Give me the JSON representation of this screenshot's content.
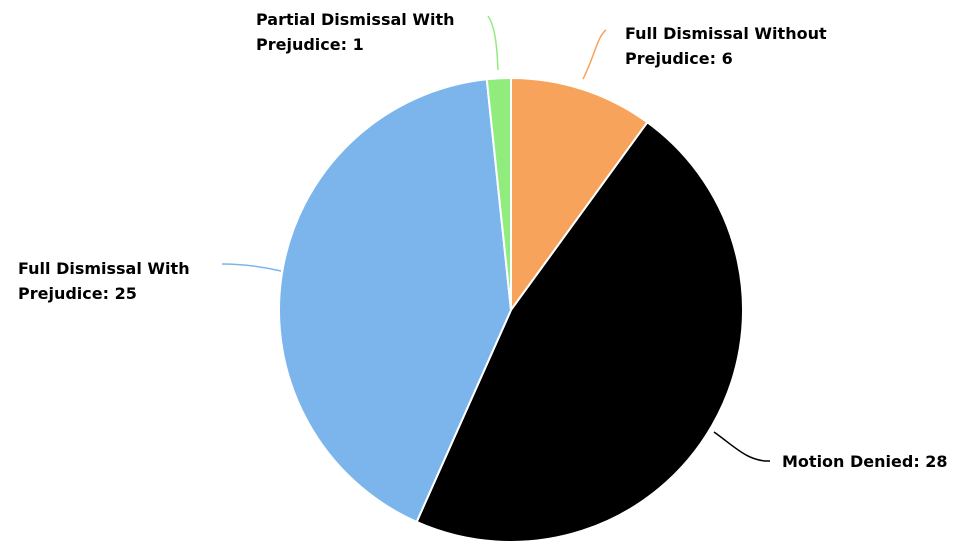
{
  "chart_data": {
    "type": "pie",
    "title": "",
    "legend": "none",
    "slices": [
      {
        "label": "Full Dismissal Without Prejudice",
        "value": 6,
        "color": "#f7a35c",
        "display_lines": [
          "Full Dismissal Without",
          "Prejudice: 6"
        ]
      },
      {
        "label": "Motion Denied",
        "value": 28,
        "color": "#000000",
        "display_lines": [
          "Motion Denied: 28"
        ]
      },
      {
        "label": "Full Dismissal With Prejudice",
        "value": 25,
        "color": "#7cb5ec",
        "display_lines": [
          "Full Dismissal With",
          "Prejudice: 25"
        ]
      },
      {
        "label": "Partial Dismissal With Prejudice",
        "value": 1,
        "color": "#90ed7d",
        "display_lines": [
          "Partial Dismissal With",
          "Prejudice: 1"
        ]
      }
    ]
  }
}
